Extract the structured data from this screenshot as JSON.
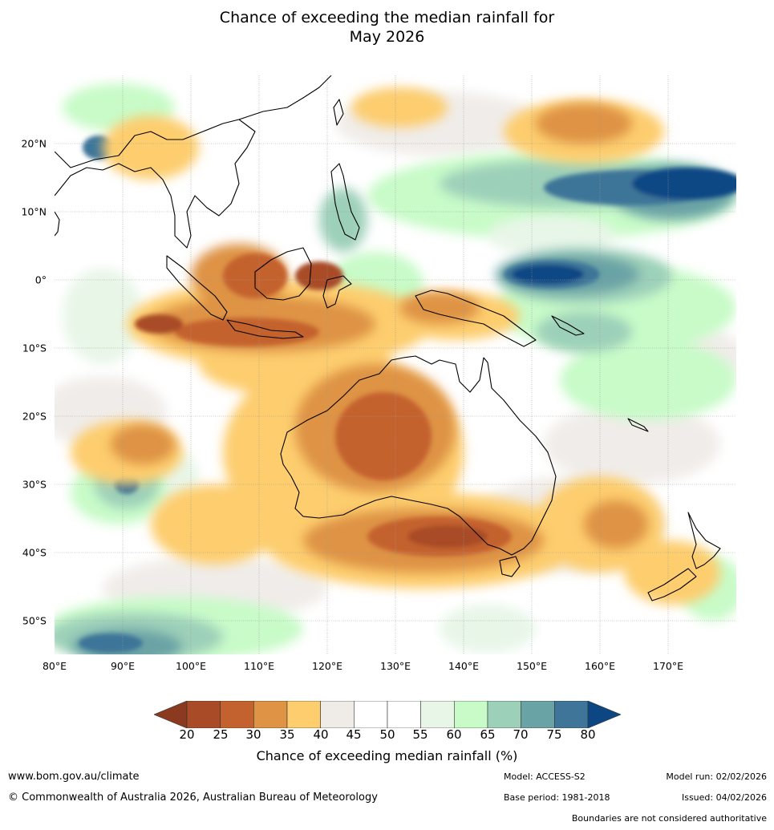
{
  "title": {
    "line1": "Chance of exceeding the median rainfall for",
    "line2": "May 2026"
  },
  "map": {
    "lat_labels": [
      "20°N",
      "10°N",
      "0°",
      "10°S",
      "20°S",
      "30°S",
      "40°S",
      "50°S"
    ],
    "lat_values": [
      20,
      10,
      0,
      -10,
      -20,
      -30,
      -40,
      -50
    ],
    "lon_labels": [
      "80°E",
      "90°E",
      "100°E",
      "110°E",
      "120°E",
      "130°E",
      "140°E",
      "150°E",
      "160°E",
      "170°E"
    ],
    "lon_values": [
      80,
      90,
      100,
      110,
      120,
      130,
      140,
      150,
      160,
      170
    ],
    "extent": {
      "lon_min": 80,
      "lon_max": 180,
      "lat_min": -55,
      "lat_max": 30
    }
  },
  "colorbar": {
    "ticks": [
      "20",
      "25",
      "30",
      "35",
      "40",
      "45",
      "50",
      "55",
      "60",
      "65",
      "70",
      "75",
      "80"
    ],
    "colors": [
      "#8c3a1f",
      "#a84b26",
      "#c4622f",
      "#de9345",
      "#fdcd6e",
      "#efebe7",
      "#ffffff",
      "#ffffff",
      "#e8f6e8",
      "#c8fbc8",
      "#9dd0b9",
      "#6aa3a6",
      "#3e7598",
      "#0c4784"
    ],
    "label": "Chance of exceeding median rainfall (%)"
  },
  "footer": {
    "website": "www.bom.gov.au/climate",
    "copyright": "© Commonwealth of Australia 2026, Australian Bureau of Meteorology",
    "model": "Model: ACCESS-S2",
    "base_period": "Base period: 1981-2018",
    "model_run": "Model run: 02/02/2026",
    "issued": "Issued: 04/02/2026",
    "disclaimer": "Boundaries are not considered authoritative"
  }
}
